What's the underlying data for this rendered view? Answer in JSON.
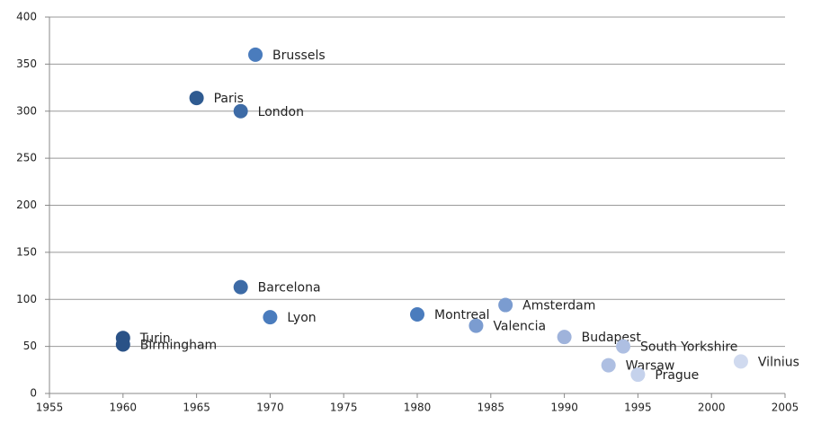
{
  "chart_data": {
    "type": "scatter",
    "labels": [
      "Brussels",
      "Paris",
      "London",
      "Barcelona",
      "Lyon",
      "Turin",
      "Birmingham",
      "Montreal",
      "Amsterdam",
      "Valencia",
      "Budapest",
      "South Yorkshire",
      "Warsaw",
      "Prague",
      "Vilnius"
    ],
    "x": [
      1969,
      1965,
      1968,
      1968,
      1970,
      1960,
      1960,
      1980,
      1986,
      1984,
      1990,
      1994,
      1993,
      1995,
      2002
    ],
    "values": [
      360,
      314,
      300,
      113,
      81,
      59,
      52,
      84,
      94,
      72,
      60,
      50,
      30,
      20,
      34
    ],
    "colors": [
      "#4a7cbd",
      "#2f5b91",
      "#3d6ba6",
      "#3d6ba6",
      "#4a7cbd",
      "#2a5287",
      "#2a5287",
      "#4a7cbd",
      "#7b9cd0",
      "#7b9cd0",
      "#9fb3db",
      "#aebfe2",
      "#aebfe2",
      "#c5d2ec",
      "#d0daef"
    ],
    "xlim": [
      1955,
      2005
    ],
    "xticks": [
      1955,
      1960,
      1965,
      1970,
      1975,
      1980,
      1985,
      1990,
      1995,
      2000,
      2005
    ],
    "ylim": [
      0,
      400
    ],
    "yticks": [
      0,
      50,
      100,
      150,
      200,
      250,
      300,
      350,
      400
    ],
    "grid": true
  }
}
